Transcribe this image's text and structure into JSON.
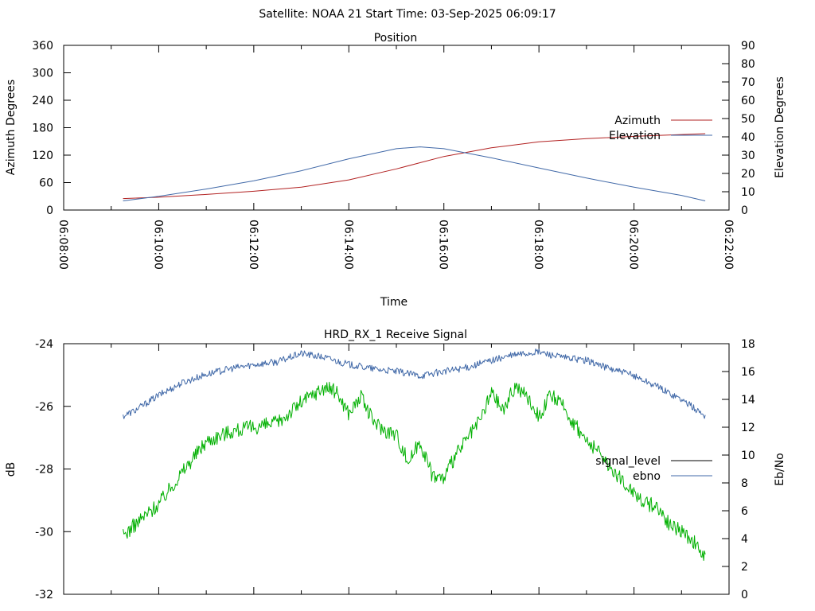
{
  "header": {
    "title": "Satellite: NOAA 21    Start Time: 03-Sep-2025 06:09:17"
  },
  "chart_data": [
    {
      "type": "line",
      "title": "Position",
      "xlabel": "Time",
      "ylabel": "Azimuth Degrees",
      "y2label": "Elevation Degrees",
      "x_ticks": [
        "06:08:00",
        "06:10:00",
        "06:12:00",
        "06:14:00",
        "06:16:00",
        "06:18:00",
        "06:20:00",
        "06:22:00"
      ],
      "ylim": [
        0,
        360
      ],
      "y_ticks": [
        "0",
        "60",
        "120",
        "180",
        "240",
        "300",
        "360"
      ],
      "y2lim": [
        0,
        90
      ],
      "y2_ticks": [
        "0",
        "10",
        "20",
        "30",
        "40",
        "50",
        "60",
        "70",
        "80",
        "90"
      ],
      "xlim_minutes": [
        0,
        14
      ],
      "legend_position": "right",
      "series": [
        {
          "name": "Azimuth",
          "axis": "left",
          "color": "#b22222",
          "x_minutes": [
            1.25,
            2.0,
            3.0,
            4.0,
            5.0,
            6.0,
            7.0,
            8.0,
            9.0,
            10.0,
            11.0,
            12.0,
            13.0,
            13.5
          ],
          "values": [
            25,
            28,
            34,
            41,
            50,
            66,
            90,
            117,
            136,
            149,
            156,
            161,
            165,
            167
          ]
        },
        {
          "name": "Elevation",
          "axis": "right",
          "color": "#4169a8",
          "x_minutes": [
            1.25,
            2.0,
            3.0,
            4.0,
            5.0,
            6.0,
            7.0,
            7.5,
            8.0,
            9.0,
            10.0,
            11.0,
            12.0,
            13.0,
            13.5
          ],
          "values": [
            5,
            7.5,
            11.5,
            16,
            21.5,
            28,
            33.5,
            34.5,
            33.5,
            28.5,
            23,
            17.5,
            12.5,
            8,
            5
          ]
        }
      ]
    },
    {
      "type": "line",
      "title": "HRD_RX_1 Receive Signal",
      "ylabel": "dB",
      "y2label": "Eb/No",
      "ylim": [
        -32,
        -24
      ],
      "y_ticks": [
        "-24",
        "-26",
        "-28",
        "-30",
        "-32"
      ],
      "y2lim": [
        0,
        18
      ],
      "y2_ticks": [
        "0",
        "2",
        "4",
        "6",
        "8",
        "10",
        "12",
        "14",
        "16",
        "18"
      ],
      "xlim_minutes": [
        0,
        14
      ],
      "legend_position": "right",
      "series": [
        {
          "name": "signal_level",
          "axis": "left",
          "color": "#000000",
          "x_minutes": [],
          "values": []
        },
        {
          "name": "ebno",
          "axis": "right",
          "color": "#4169a8",
          "x_minutes": [
            1.25,
            1.5,
            2.0,
            2.5,
            3.0,
            3.5,
            4.0,
            4.5,
            5.0,
            5.5,
            6.0,
            6.5,
            7.0,
            7.5,
            8.0,
            8.5,
            9.0,
            9.5,
            10.0,
            10.5,
            11.0,
            11.5,
            12.0,
            12.5,
            13.0,
            13.5
          ],
          "values": [
            12.8,
            13.2,
            14.3,
            15.2,
            15.8,
            16.2,
            16.5,
            16.7,
            17.3,
            17.0,
            16.5,
            16.2,
            16.0,
            15.7,
            16.0,
            16.3,
            16.8,
            17.2,
            17.4,
            17.0,
            16.8,
            16.2,
            15.7,
            14.9,
            14.0,
            12.8
          ]
        },
        {
          "name": "",
          "axis": "right",
          "color": "#00b000",
          "x_minutes": [
            1.25,
            1.5,
            2.0,
            2.5,
            3.0,
            3.5,
            4.0,
            4.5,
            5.0,
            5.5,
            5.75,
            6.0,
            6.25,
            6.5,
            6.75,
            7.0,
            7.25,
            7.5,
            7.75,
            8.0,
            8.25,
            8.5,
            8.75,
            9.0,
            9.25,
            9.5,
            9.75,
            10.0,
            10.25,
            10.5,
            10.75,
            11.0,
            11.25,
            11.5,
            11.75,
            12.0,
            12.25,
            12.5,
            12.75,
            13.0,
            13.25,
            13.5
          ],
          "values": [
            4.2,
            5.0,
            6.5,
            8.8,
            11.0,
            11.7,
            12.0,
            12.3,
            13.8,
            14.9,
            14.5,
            13.0,
            14.2,
            12.5,
            11.8,
            11.5,
            9.5,
            11.0,
            8.6,
            8.3,
            10.0,
            11.2,
            12.4,
            14.5,
            13.2,
            15.0,
            14.2,
            12.8,
            14.3,
            13.5,
            12.2,
            11.0,
            10.2,
            9.2,
            8.1,
            7.4,
            6.5,
            6.3,
            5.0,
            4.5,
            3.8,
            2.5
          ]
        }
      ]
    }
  ]
}
